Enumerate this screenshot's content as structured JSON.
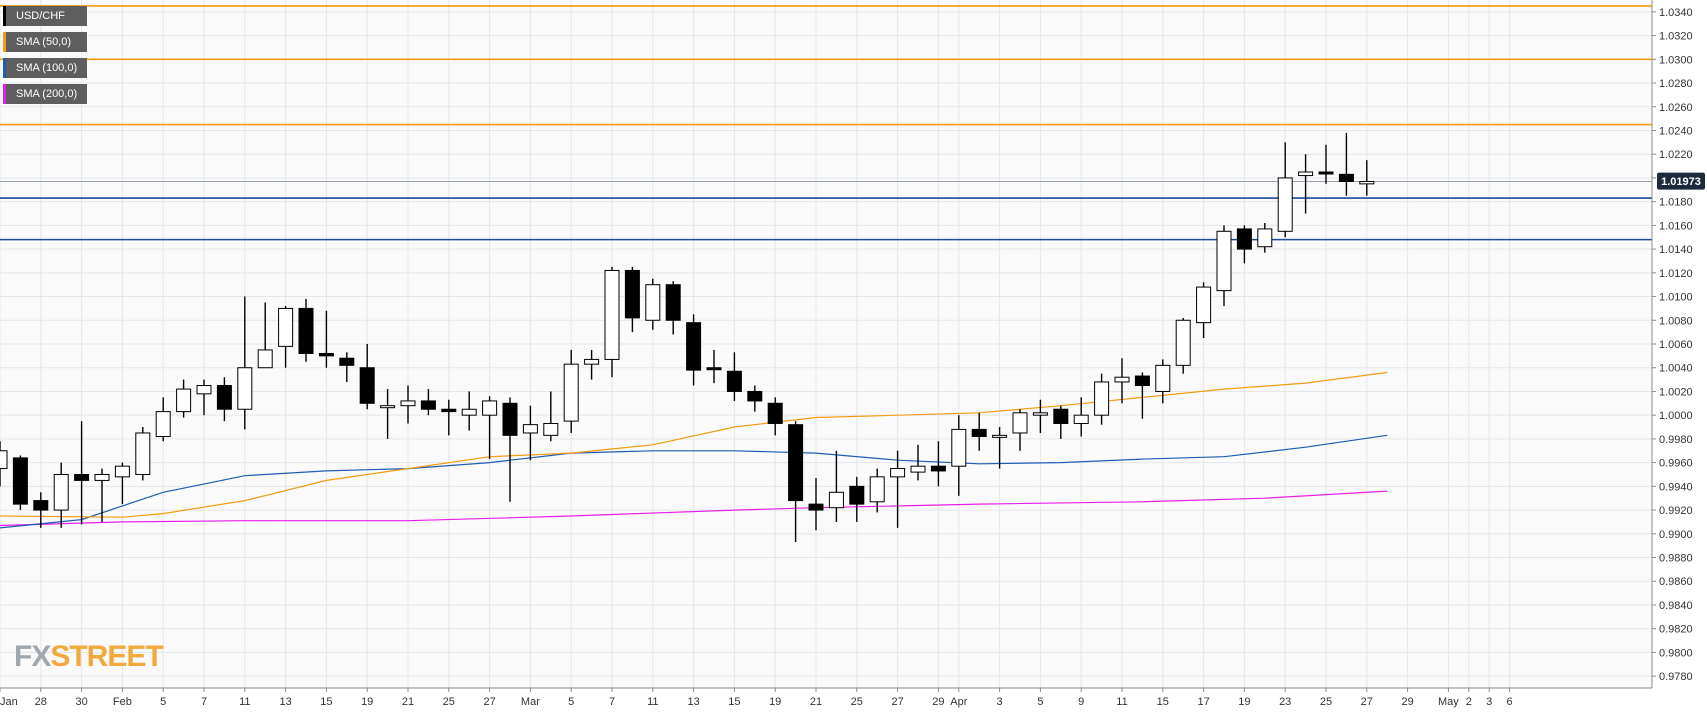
{
  "legend": {
    "items": [
      {
        "label": "USD/CHF",
        "color": "#000000"
      },
      {
        "label": "SMA (50,0)",
        "color": "#f39c12"
      },
      {
        "label": "SMA (100,0)",
        "color": "#1e5db3"
      },
      {
        "label": "SMA (200,0)",
        "color": "#e81ee8"
      }
    ]
  },
  "logo": {
    "part1": "FX",
    "part2": "STREET"
  },
  "chart_data": {
    "type": "candlestick",
    "symbol": "USD/CHF",
    "ylim": [
      0.977,
      1.035
    ],
    "y_ticks": [
      "1.0340",
      "1.0320",
      "1.0300",
      "1.0280",
      "1.0260",
      "1.0240",
      "1.0220",
      "1.0200",
      "1.0180",
      "1.0160",
      "1.0140",
      "1.0120",
      "1.0100",
      "1.0080",
      "1.0060",
      "1.0040",
      "1.0020",
      "1.0000",
      "0.9980",
      "0.9960",
      "0.9940",
      "0.9920",
      "0.9900",
      "0.9880",
      "0.9860",
      "0.9840",
      "0.9820",
      "0.9800",
      "0.9780"
    ],
    "x_ticks": [
      {
        "label": "Jan",
        "bar": 0
      },
      {
        "label": "28",
        "bar": 2
      },
      {
        "label": "30",
        "bar": 4
      },
      {
        "label": "Feb",
        "bar": 6
      },
      {
        "label": "5",
        "bar": 8
      },
      {
        "label": "7",
        "bar": 10
      },
      {
        "label": "11",
        "bar": 12
      },
      {
        "label": "13",
        "bar": 14
      },
      {
        "label": "15",
        "bar": 16
      },
      {
        "label": "19",
        "bar": 18
      },
      {
        "label": "21",
        "bar": 20
      },
      {
        "label": "25",
        "bar": 22
      },
      {
        "label": "27",
        "bar": 24
      },
      {
        "label": "Mar",
        "bar": 26
      },
      {
        "label": "5",
        "bar": 28
      },
      {
        "label": "7",
        "bar": 30
      },
      {
        "label": "11",
        "bar": 32
      },
      {
        "label": "13",
        "bar": 34
      },
      {
        "label": "15",
        "bar": 36
      },
      {
        "label": "19",
        "bar": 38
      },
      {
        "label": "21",
        "bar": 40
      },
      {
        "label": "25",
        "bar": 42
      },
      {
        "label": "27",
        "bar": 44
      },
      {
        "label": "29",
        "bar": 46
      },
      {
        "label": "Apr",
        "bar": 47
      },
      {
        "label": "3",
        "bar": 49
      },
      {
        "label": "5",
        "bar": 51
      },
      {
        "label": "9",
        "bar": 53
      },
      {
        "label": "11",
        "bar": 55
      },
      {
        "label": "15",
        "bar": 57
      },
      {
        "label": "17",
        "bar": 59
      },
      {
        "label": "19",
        "bar": 61
      },
      {
        "label": "23",
        "bar": 63
      },
      {
        "label": "25",
        "bar": 65
      },
      {
        "label": "27",
        "bar": 67
      },
      {
        "label": "29",
        "bar": 69
      },
      {
        "label": "May",
        "bar": 71
      },
      {
        "label": "2",
        "bar": 72
      },
      {
        "label": "3",
        "bar": 73
      },
      {
        "label": "6",
        "bar": 74
      }
    ],
    "candles": [
      {
        "o": 0.9955,
        "h": 0.9978,
        "l": 0.994,
        "c": 0.997
      },
      {
        "o": 0.9964,
        "h": 0.9966,
        "l": 0.992,
        "c": 0.9925
      },
      {
        "o": 0.9928,
        "h": 0.9935,
        "l": 0.9905,
        "c": 0.992
      },
      {
        "o": 0.992,
        "h": 0.996,
        "l": 0.9905,
        "c": 0.995
      },
      {
        "o": 0.995,
        "h": 0.9995,
        "l": 0.9908,
        "c": 0.9945
      },
      {
        "o": 0.9945,
        "h": 0.9955,
        "l": 0.991,
        "c": 0.995
      },
      {
        "o": 0.9948,
        "h": 0.996,
        "l": 0.9925,
        "c": 0.9957
      },
      {
        "o": 0.995,
        "h": 0.999,
        "l": 0.9945,
        "c": 0.9985
      },
      {
        "o": 0.9982,
        "h": 1.0015,
        "l": 0.9978,
        "c": 1.0003
      },
      {
        "o": 1.0003,
        "h": 1.003,
        "l": 0.9998,
        "c": 1.0022
      },
      {
        "o": 1.0018,
        "h": 1.003,
        "l": 1.0,
        "c": 1.0025
      },
      {
        "o": 1.0025,
        "h": 1.0032,
        "l": 0.9995,
        "c": 1.0005
      },
      {
        "o": 1.0005,
        "h": 1.01,
        "l": 0.9988,
        "c": 1.004
      },
      {
        "o": 1.004,
        "h": 1.0095,
        "l": 1.004,
        "c": 1.0055
      },
      {
        "o": 1.0058,
        "h": 1.0092,
        "l": 1.004,
        "c": 1.009
      },
      {
        "o": 1.009,
        "h": 1.0098,
        "l": 1.0045,
        "c": 1.0052
      },
      {
        "o": 1.0052,
        "h": 1.0088,
        "l": 1.004,
        "c": 1.005
      },
      {
        "o": 1.0048,
        "h": 1.0053,
        "l": 1.0028,
        "c": 1.0042
      },
      {
        "o": 1.004,
        "h": 1.006,
        "l": 1.0005,
        "c": 1.001
      },
      {
        "o": 1.0008,
        "h": 1.0022,
        "l": 0.998,
        "c": 1.0008
      },
      {
        "o": 1.0008,
        "h": 1.0025,
        "l": 0.9993,
        "c": 1.0012
      },
      {
        "o": 1.0012,
        "h": 1.0022,
        "l": 1.0,
        "c": 1.0005
      },
      {
        "o": 1.0005,
        "h": 1.0013,
        "l": 0.9983,
        "c": 1.0003
      },
      {
        "o": 1.0,
        "h": 1.002,
        "l": 0.9987,
        "c": 1.0005
      },
      {
        "o": 1.0,
        "h": 1.0016,
        "l": 0.9963,
        "c": 1.0012
      },
      {
        "o": 1.001,
        "h": 1.0015,
        "l": 0.9927,
        "c": 0.9983
      },
      {
        "o": 0.9985,
        "h": 1.0008,
        "l": 0.9962,
        "c": 0.9992
      },
      {
        "o": 0.9983,
        "h": 1.002,
        "l": 0.9978,
        "c": 0.9993
      },
      {
        "o": 0.9995,
        "h": 1.0055,
        "l": 0.9985,
        "c": 1.0043
      },
      {
        "o": 1.0043,
        "h": 1.0055,
        "l": 1.003,
        "c": 1.0047
      },
      {
        "o": 1.0047,
        "h": 1.0125,
        "l": 1.0032,
        "c": 1.0122
      },
      {
        "o": 1.0122,
        "h": 1.0125,
        "l": 1.007,
        "c": 1.0082
      },
      {
        "o": 1.008,
        "h": 1.0115,
        "l": 1.0072,
        "c": 1.011
      },
      {
        "o": 1.011,
        "h": 1.0113,
        "l": 1.0068,
        "c": 1.008
      },
      {
        "o": 1.0078,
        "h": 1.0085,
        "l": 1.0025,
        "c": 1.0038
      },
      {
        "o": 1.004,
        "h": 1.0055,
        "l": 1.0027,
        "c": 1.0039
      },
      {
        "o": 1.0037,
        "h": 1.0053,
        "l": 1.0012,
        "c": 1.002
      },
      {
        "o": 1.002,
        "h": 1.0025,
        "l": 1.0003,
        "c": 1.0012
      },
      {
        "o": 1.001,
        "h": 1.0015,
        "l": 0.9983,
        "c": 0.9993
      },
      {
        "o": 0.9992,
        "h": 0.9995,
        "l": 0.9893,
        "c": 0.9928
      },
      {
        "o": 0.9925,
        "h": 0.9947,
        "l": 0.9903,
        "c": 0.992
      },
      {
        "o": 0.9922,
        "h": 0.997,
        "l": 0.991,
        "c": 0.9935
      },
      {
        "o": 0.994,
        "h": 0.9948,
        "l": 0.991,
        "c": 0.9925
      },
      {
        "o": 0.9927,
        "h": 0.9955,
        "l": 0.9918,
        "c": 0.9948
      },
      {
        "o": 0.9948,
        "h": 0.997,
        "l": 0.9905,
        "c": 0.9955
      },
      {
        "o": 0.9952,
        "h": 0.9975,
        "l": 0.9945,
        "c": 0.9957
      },
      {
        "o": 0.9957,
        "h": 0.9978,
        "l": 0.994,
        "c": 0.9953
      },
      {
        "o": 0.9957,
        "h": 1.0,
        "l": 0.9932,
        "c": 0.9988
      },
      {
        "o": 0.9988,
        "h": 1.0002,
        "l": 0.997,
        "c": 0.9982
      },
      {
        "o": 0.9982,
        "h": 0.999,
        "l": 0.9955,
        "c": 0.9983
      },
      {
        "o": 0.9985,
        "h": 1.0005,
        "l": 0.997,
        "c": 1.0002
      },
      {
        "o": 1.0,
        "h": 1.0013,
        "l": 0.9985,
        "c": 1.0002
      },
      {
        "o": 1.0005,
        "h": 1.0008,
        "l": 0.998,
        "c": 0.9993
      },
      {
        "o": 0.9993,
        "h": 1.0015,
        "l": 0.9982,
        "c": 1.0
      },
      {
        "o": 1.0,
        "h": 1.0035,
        "l": 0.9992,
        "c": 1.0028
      },
      {
        "o": 1.0028,
        "h": 1.0048,
        "l": 1.001,
        "c": 1.0032
      },
      {
        "o": 1.0033,
        "h": 1.0036,
        "l": 0.9997,
        "c": 1.0025
      },
      {
        "o": 1.002,
        "h": 1.0047,
        "l": 1.001,
        "c": 1.0042
      },
      {
        "o": 1.0042,
        "h": 1.0082,
        "l": 1.0035,
        "c": 1.008
      },
      {
        "o": 1.0078,
        "h": 1.0112,
        "l": 1.0065,
        "c": 1.0108
      },
      {
        "o": 1.0105,
        "h": 1.016,
        "l": 1.0092,
        "c": 1.0155
      },
      {
        "o": 1.0157,
        "h": 1.016,
        "l": 1.0128,
        "c": 1.014
      },
      {
        "o": 1.0142,
        "h": 1.0162,
        "l": 1.0137,
        "c": 1.0157
      },
      {
        "o": 1.0155,
        "h": 1.023,
        "l": 1.015,
        "c": 1.02
      },
      {
        "o": 1.0202,
        "h": 1.022,
        "l": 1.017,
        "c": 1.0205
      },
      {
        "o": 1.0205,
        "h": 1.0228,
        "l": 1.0195,
        "c": 1.0204
      },
      {
        "o": 1.0203,
        "h": 1.0238,
        "l": 1.0185,
        "c": 1.0197
      },
      {
        "o": 1.0195,
        "h": 1.0215,
        "l": 1.0185,
        "c": 1.0197
      }
    ],
    "sma_50": [
      [
        0,
        0.9915
      ],
      [
        6,
        0.9914
      ],
      [
        8,
        0.9917
      ],
      [
        12,
        0.9928
      ],
      [
        16,
        0.9945
      ],
      [
        20,
        0.9955
      ],
      [
        24,
        0.9965
      ],
      [
        28,
        0.9968
      ],
      [
        32,
        0.9975
      ],
      [
        36,
        0.999
      ],
      [
        40,
        0.9998
      ],
      [
        44,
        1.0
      ],
      [
        48,
        1.0002
      ],
      [
        52,
        1.0008
      ],
      [
        56,
        1.0015
      ],
      [
        60,
        1.0022
      ],
      [
        64,
        1.0027
      ],
      [
        68,
        1.0036
      ]
    ],
    "sma_100": [
      [
        0,
        0.9905
      ],
      [
        4,
        0.9912
      ],
      [
        8,
        0.9935
      ],
      [
        12,
        0.9949
      ],
      [
        16,
        0.9953
      ],
      [
        20,
        0.9955
      ],
      [
        24,
        0.996
      ],
      [
        28,
        0.9968
      ],
      [
        32,
        0.997
      ],
      [
        36,
        0.997
      ],
      [
        40,
        0.9968
      ],
      [
        44,
        0.9962
      ],
      [
        48,
        0.9959
      ],
      [
        52,
        0.996
      ],
      [
        56,
        0.9963
      ],
      [
        60,
        0.9965
      ],
      [
        64,
        0.9973
      ],
      [
        68,
        0.9983
      ]
    ],
    "sma_200": [
      [
        0,
        0.9907
      ],
      [
        6,
        0.991
      ],
      [
        12,
        0.9911
      ],
      [
        20,
        0.9911
      ],
      [
        28,
        0.9915
      ],
      [
        36,
        0.992
      ],
      [
        40,
        0.9922
      ],
      [
        48,
        0.9925
      ],
      [
        56,
        0.9927
      ],
      [
        62,
        0.993
      ],
      [
        68,
        0.9936
      ]
    ],
    "horizontal_lines": [
      {
        "value": 1.0345,
        "color": "#f39c12"
      },
      {
        "value": 1.03,
        "color": "#f39c12"
      },
      {
        "value": 1.0245,
        "color": "#f39c12"
      },
      {
        "value": 1.0197,
        "color": "#98a3ad"
      },
      {
        "value": 1.0183,
        "color": "#1a4a99"
      },
      {
        "value": 1.0148,
        "color": "#1a4a99"
      }
    ],
    "last_price": "1.01973",
    "grid": true
  }
}
